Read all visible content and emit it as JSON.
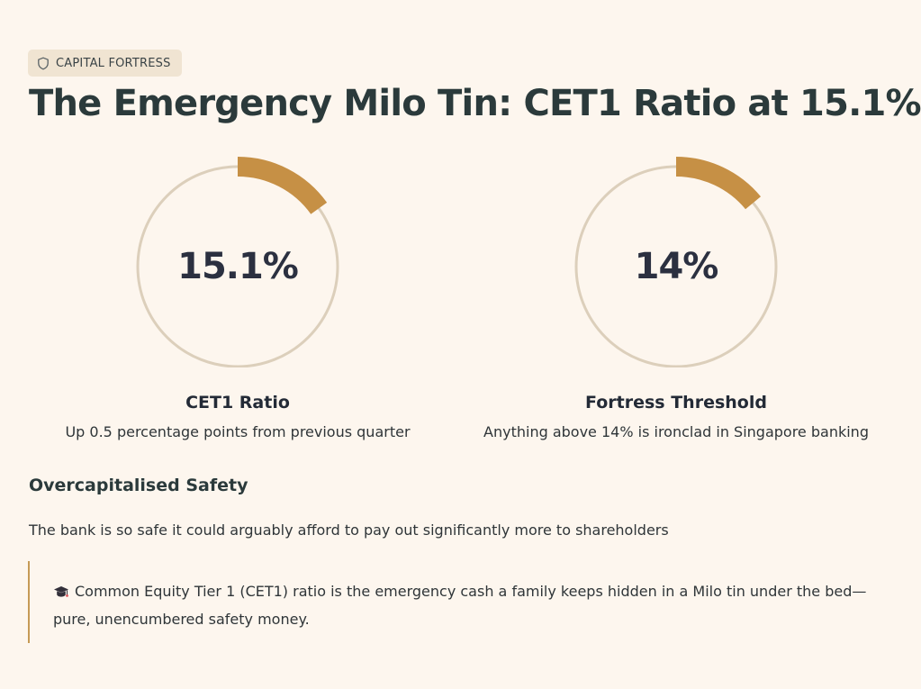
{
  "badge": {
    "icon": "shield-icon",
    "label": "CAPITAL FORTRESS"
  },
  "title": "The Emergency Milo Tin: CET1 Ratio at 15.1%",
  "colors": {
    "accent": "#c69045",
    "track": "#dccfbb",
    "background": "#fdf6ee"
  },
  "gauges": [
    {
      "value_text": "15.1%",
      "fill_percent": 15.1,
      "label": "CET1 Ratio",
      "subtext": "Up 0.5 percentage points from previous quarter"
    },
    {
      "value_text": "14%",
      "fill_percent": 14,
      "label": "Fortress Threshold",
      "subtext": "Anything above 14% is ironclad in Singapore banking"
    }
  ],
  "section": {
    "heading": "Overcapitalised Safety",
    "body": "The bank is so safe it could arguably afford to pay out significantly more to shareholders"
  },
  "callout": {
    "icon": "graduation-cap-icon",
    "text": "Common Equity Tier 1 (CET1) ratio is the emergency cash a family keeps hidden in a Milo tin under the bed—pure, unencumbered safety money."
  }
}
